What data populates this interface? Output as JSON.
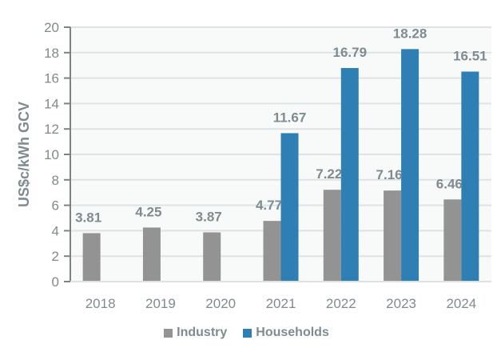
{
  "chart_data": {
    "type": "bar",
    "title": "",
    "xlabel": "",
    "ylabel": "US$c/kWh GCV",
    "ylim": [
      0,
      20
    ],
    "yticks": [
      0,
      2,
      4,
      6,
      8,
      10,
      12,
      14,
      16,
      18,
      20
    ],
    "grid": true,
    "legend_position": "bottom",
    "categories": [
      "2018",
      "2019",
      "2020",
      "2021",
      "2022",
      "2023",
      "2024"
    ],
    "series": [
      {
        "name": "Industry",
        "color": "#939393",
        "values": [
          3.81,
          4.25,
          3.87,
          4.77,
          7.22,
          7.16,
          6.46
        ],
        "labels": [
          "3.81",
          "4.25",
          "3.87",
          "4.77",
          "7.22",
          "7.16",
          "6.46"
        ]
      },
      {
        "name": "Households",
        "color": "#2e7fb3",
        "values": [
          null,
          null,
          null,
          11.67,
          16.79,
          18.28,
          16.51
        ],
        "labels": [
          null,
          null,
          null,
          "11.67",
          "16.79",
          "18.28",
          "16.51"
        ]
      }
    ]
  }
}
